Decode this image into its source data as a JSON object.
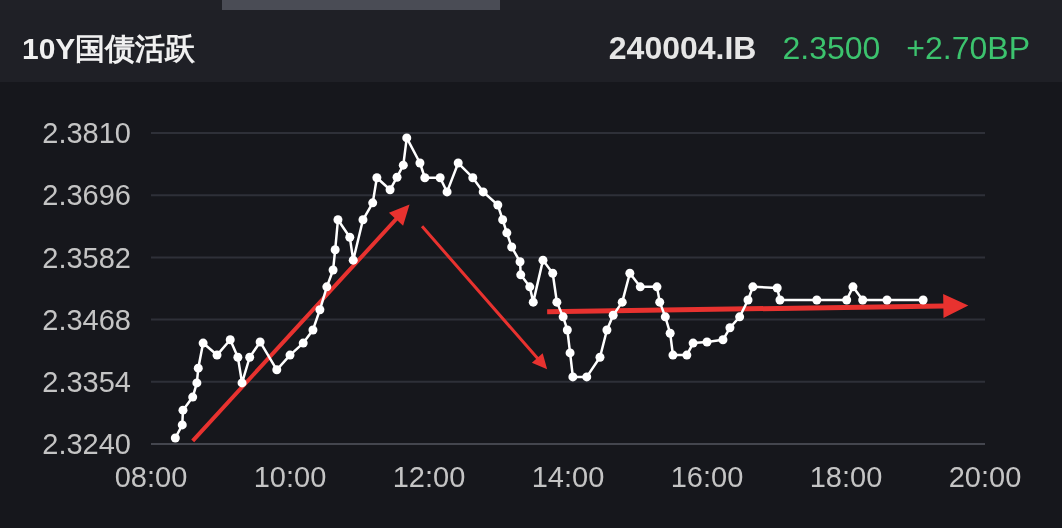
{
  "chart_data": {
    "type": "line",
    "title": "10Y国债活跃",
    "annotations": [
      "240004.IB",
      "2.3500",
      "+2.70BP"
    ],
    "x": [
      8.35,
      8.45,
      8.46,
      8.6,
      8.66,
      8.68,
      8.75,
      8.95,
      9.14,
      9.25,
      9.31,
      9.42,
      9.57,
      9.81,
      10,
      10.19,
      10.33,
      10.43,
      10.53,
      10.62,
      10.65,
      10.69,
      10.86,
      10.91,
      11.05,
      11.19,
      11.25,
      11.44,
      11.54,
      11.63,
      11.68,
      11.87,
      11.94,
      12.16,
      12.26,
      12.42,
      12.63,
      12.78,
      12.99,
      13.06,
      13.12,
      13.19,
      13.31,
      13.32,
      13.45,
      13.5,
      13.64,
      13.78,
      13.84,
      13.93,
      13.99,
      14.03,
      14.07,
      14.27,
      14.46,
      14.56,
      14.65,
      14.78,
      14.89,
      15.04,
      15.28,
      15.32,
      15.4,
      15.47,
      15.51,
      15.71,
      15.8,
      16,
      16.23,
      16.33,
      16.47,
      16.59,
      16.66,
      17.01,
      17.05,
      17.58,
      18.01,
      18.1,
      18.24,
      18.59,
      19.11
    ],
    "series": [
      {
        "color": "#ffffff",
        "values": [
          2.3251,
          2.3275,
          2.3302,
          2.3326,
          2.3352,
          2.3379,
          2.3425,
          2.3403,
          2.3431,
          2.3399,
          2.3352,
          2.3399,
          2.3427,
          2.3376,
          2.3403,
          2.3425,
          2.3449,
          2.3486,
          2.3528,
          2.3559,
          2.3596,
          2.3651,
          2.3619,
          2.3577,
          2.3651,
          2.3682,
          2.3728,
          2.3706,
          2.3729,
          2.3751,
          2.3801,
          2.3755,
          2.3728,
          2.3728,
          2.3702,
          2.3755,
          2.3728,
          2.3702,
          2.3678,
          2.3651,
          2.3627,
          2.3601,
          2.3574,
          2.355,
          2.3528,
          2.35,
          2.3577,
          2.3553,
          2.35,
          2.3473,
          2.3449,
          2.3407,
          2.3363,
          2.3363,
          2.3399,
          2.3449,
          2.3476,
          2.35,
          2.3553,
          2.3528,
          2.3528,
          2.35,
          2.3473,
          2.3443,
          2.3403,
          2.3403,
          2.3425,
          2.3427,
          2.3431,
          2.3453,
          2.3473,
          2.3504,
          2.3528,
          2.3526,
          2.3504,
          2.3504,
          2.3504,
          2.3528,
          2.3504,
          2.3504,
          2.3504
        ]
      }
    ],
    "xlim": [
      8,
      20
    ],
    "xticks": [
      {
        "value": 8,
        "label": "08:00"
      },
      {
        "value": 10,
        "label": "10:00"
      },
      {
        "value": 12,
        "label": "12:00"
      },
      {
        "value": 14,
        "label": "14:00"
      },
      {
        "value": 16,
        "label": "16:00"
      },
      {
        "value": 18,
        "label": "18:00"
      },
      {
        "value": 20,
        "label": "20:00"
      }
    ],
    "ylim": [
      2.324,
      2.381
    ],
    "yticks": [
      {
        "value": 2.324,
        "label": "2.3240"
      },
      {
        "value": 2.3354,
        "label": "2.3354"
      },
      {
        "value": 2.3468,
        "label": "2.3468"
      },
      {
        "value": 2.3582,
        "label": "2.3582"
      },
      {
        "value": 2.3696,
        "label": "2.3696"
      },
      {
        "value": 2.381,
        "label": "2.3810"
      }
    ],
    "grid": "y",
    "marker": "circle",
    "line_style": "solid"
  }
}
